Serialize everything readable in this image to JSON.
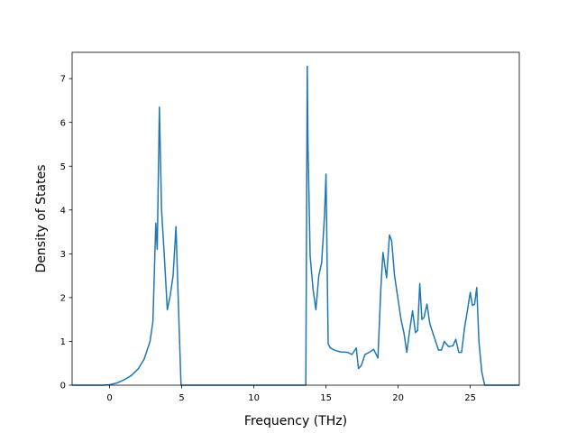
{
  "chart_data": {
    "type": "line",
    "title": "",
    "xlabel": "Frequency (THz)",
    "ylabel": "Density of States",
    "xlim": [
      -2.6,
      28.4
    ],
    "ylim": [
      0,
      7.6
    ],
    "xticks": [
      0,
      5,
      10,
      15,
      20,
      25
    ],
    "yticks": [
      0,
      1,
      2,
      3,
      4,
      5,
      6,
      7
    ],
    "grid": false,
    "legend": "none",
    "line_color": "#1f77b4",
    "series": [
      {
        "x": [
          -2.6,
          -0.5,
          0,
          0.5,
          1.0,
          1.5,
          2.0,
          2.4,
          2.8,
          3.0,
          3.2,
          3.3,
          3.45,
          3.6,
          3.8,
          4.0,
          4.2,
          4.4,
          4.6,
          4.8,
          4.95,
          5.0,
          5.2,
          10.0,
          13.6,
          13.7,
          13.75,
          13.9,
          14.1,
          14.3,
          14.5,
          14.7,
          14.9,
          15.0,
          15.15,
          15.3,
          15.6,
          16.0,
          16.5,
          16.8,
          17.1,
          17.25,
          17.45,
          17.7,
          18.0,
          18.3,
          18.6,
          18.8,
          18.95,
          19.2,
          19.4,
          19.55,
          19.75,
          20.0,
          20.2,
          20.4,
          20.6,
          20.8,
          21.0,
          21.2,
          21.35,
          21.5,
          21.65,
          21.8,
          22.0,
          22.2,
          22.5,
          22.8,
          23.0,
          23.2,
          23.5,
          23.8,
          24.0,
          24.2,
          24.4,
          24.6,
          24.8,
          25.0,
          25.15,
          25.3,
          25.45,
          25.6,
          25.8,
          26.0,
          26.2,
          28.4
        ],
        "y": [
          0,
          0,
          0.01,
          0.05,
          0.12,
          0.22,
          0.38,
          0.6,
          1.0,
          1.45,
          3.7,
          3.1,
          6.35,
          4.0,
          2.9,
          1.72,
          2.05,
          2.5,
          3.62,
          1.5,
          0,
          0,
          0,
          0,
          0,
          7.28,
          5.5,
          2.95,
          2.2,
          1.72,
          2.5,
          2.8,
          3.9,
          4.82,
          0.95,
          0.85,
          0.8,
          0.76,
          0.75,
          0.7,
          0.85,
          0.38,
          0.45,
          0.7,
          0.75,
          0.82,
          0.62,
          2.2,
          3.03,
          2.45,
          3.43,
          3.3,
          2.5,
          1.95,
          1.5,
          1.2,
          0.75,
          1.25,
          1.7,
          1.2,
          1.25,
          2.32,
          1.5,
          1.55,
          1.85,
          1.4,
          1.1,
          0.8,
          0.8,
          1.0,
          0.88,
          0.9,
          1.05,
          0.75,
          0.75,
          1.3,
          1.7,
          2.12,
          1.82,
          1.85,
          2.23,
          1.0,
          0.3,
          0,
          0,
          0
        ]
      }
    ]
  }
}
